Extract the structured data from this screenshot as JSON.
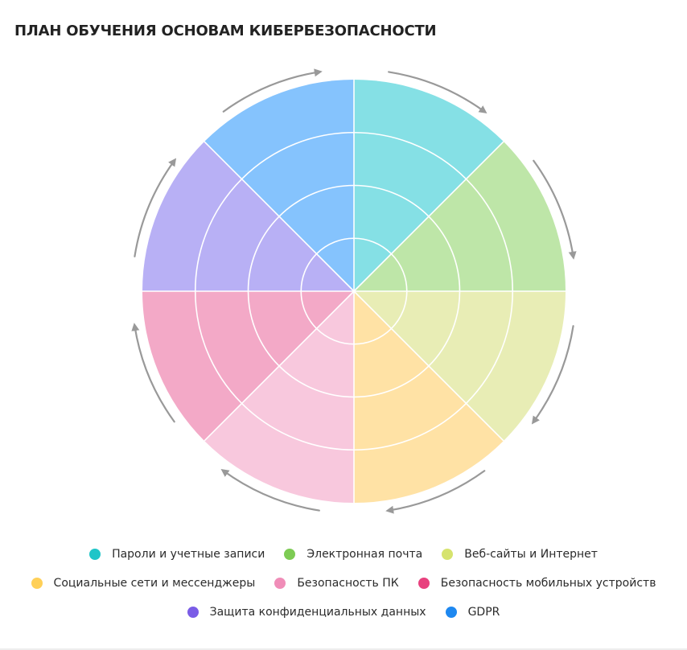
{
  "title": "ПЛАН ОБУЧЕНИЯ ОСНОВАМ КИБЕРБЕЗОПАСНОСТИ",
  "wheel": {
    "rings": 4,
    "arrow_color": "#999999",
    "direction": "clockwise",
    "segments": [
      {
        "key": "passwords",
        "fill": "#85E0E5"
      },
      {
        "key": "email",
        "fill": "#BEE6A8"
      },
      {
        "key": "web",
        "fill": "#E8EDB5"
      },
      {
        "key": "social",
        "fill": "#FFE2A5"
      },
      {
        "key": "pc",
        "fill": "#F8C8DD"
      },
      {
        "key": "mobile",
        "fill": "#F3A9C7"
      },
      {
        "key": "privacy",
        "fill": "#B8B0F5"
      },
      {
        "key": "gdpr",
        "fill": "#85C3FD"
      }
    ]
  },
  "legend": [
    [
      {
        "label": "Пароли и учетные записи",
        "color": "#1FC5C8",
        "icon": "teal-dot"
      },
      {
        "label": "Электронная почта",
        "color": "#7DCB54",
        "icon": "green-dot"
      },
      {
        "label": "Веб-сайты и Интернет",
        "color": "#D6E36E",
        "icon": "lime-dot"
      }
    ],
    [
      {
        "label": "Социальные сети и мессенджеры",
        "color": "#FFD058",
        "icon": "yellow-dot"
      },
      {
        "label": "Безопасность ПК",
        "color": "#F08DB8",
        "icon": "pink-dot"
      },
      {
        "label": "Безопасность мобильных устройств",
        "color": "#E8417E",
        "icon": "magenta-dot"
      }
    ],
    [
      {
        "label": "Защита конфиденциальных данных",
        "color": "#7A5CE6",
        "icon": "purple-dot"
      },
      {
        "label": "GDPR",
        "color": "#1E88F0",
        "icon": "blue-dot"
      }
    ]
  ]
}
